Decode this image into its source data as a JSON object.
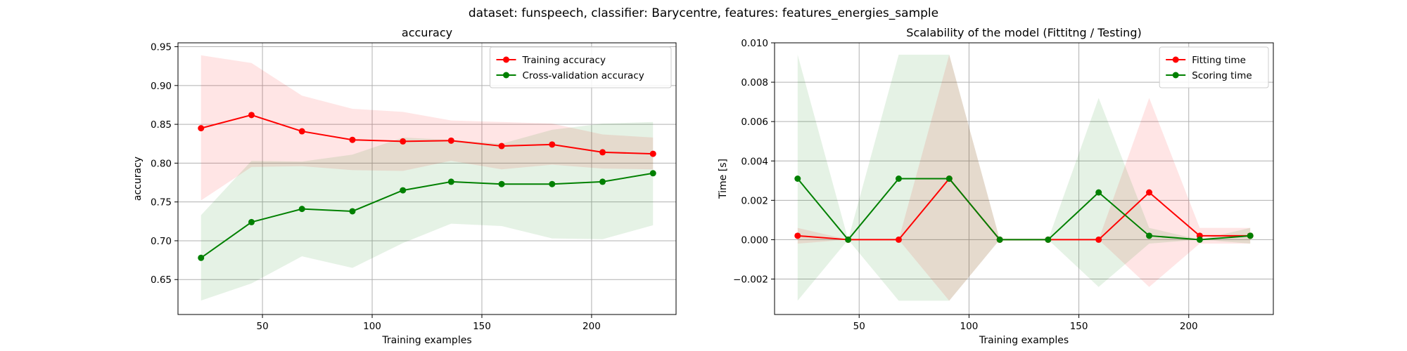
{
  "figure_title": "dataset: funspeech, classifier: Barycentre, features: features_energies_sample",
  "colors": {
    "red": "#ff0000",
    "green": "#008000",
    "grid": "#b0b0b0",
    "axis": "#000000"
  },
  "chart_data": [
    {
      "type": "line",
      "title": "accuracy",
      "xlabel": "Training examples",
      "ylabel": "accuracy",
      "xlim": [
        11.5,
        238.5
      ],
      "ylim": [
        0.605,
        0.955
      ],
      "xticks": [
        50,
        100,
        150,
        200
      ],
      "xtick_labels": [
        "50",
        "100",
        "150",
        "200"
      ],
      "yticks": [
        0.65,
        0.7,
        0.75,
        0.8,
        0.85,
        0.9,
        0.95
      ],
      "ytick_labels": [
        "0.65",
        "0.70",
        "0.75",
        "0.80",
        "0.85",
        "0.90",
        "0.95"
      ],
      "grid": true,
      "legend_position": "upper-right",
      "x": [
        22,
        45,
        68,
        91,
        114,
        136,
        159,
        182,
        205,
        228
      ],
      "series": [
        {
          "name": "Training accuracy",
          "color": "#ff0000",
          "values": [
            0.845,
            0.862,
            0.841,
            0.83,
            0.828,
            0.829,
            0.822,
            0.824,
            0.814,
            0.812
          ],
          "upper": [
            0.939,
            0.929,
            0.887,
            0.87,
            0.866,
            0.855,
            0.853,
            0.851,
            0.837,
            0.833
          ],
          "lower": [
            0.752,
            0.795,
            0.796,
            0.791,
            0.79,
            0.803,
            0.792,
            0.798,
            0.793,
            0.792
          ]
        },
        {
          "name": "Cross-validation accuracy",
          "color": "#008000",
          "values": [
            0.678,
            0.724,
            0.741,
            0.738,
            0.765,
            0.776,
            0.773,
            0.773,
            0.776,
            0.787
          ],
          "upper": [
            0.733,
            0.803,
            0.802,
            0.811,
            0.833,
            0.83,
            0.825,
            0.843,
            0.851,
            0.853
          ],
          "lower": [
            0.623,
            0.645,
            0.68,
            0.665,
            0.697,
            0.722,
            0.719,
            0.703,
            0.702,
            0.72
          ]
        }
      ]
    },
    {
      "type": "line",
      "title": "Scalability of the model (Fittitng / Testing)",
      "xlabel": "Training examples",
      "ylabel": "Time [s]",
      "xlim": [
        11.5,
        238.5
      ],
      "ylim": [
        -0.0038,
        0.01
      ],
      "xticks": [
        50,
        100,
        150,
        200
      ],
      "xtick_labels": [
        "50",
        "100",
        "150",
        "200"
      ],
      "yticks": [
        -0.002,
        0.0,
        0.002,
        0.004,
        0.006,
        0.008,
        0.01
      ],
      "ytick_labels": [
        "−0.002",
        "0.000",
        "0.002",
        "0.004",
        "0.006",
        "0.008",
        "0.010"
      ],
      "grid": true,
      "legend_position": "upper-right",
      "x": [
        22,
        45,
        68,
        91,
        114,
        136,
        159,
        182,
        205,
        228
      ],
      "series": [
        {
          "name": "Fitting time",
          "color": "#ff0000",
          "values": [
            0.0002,
            0.0,
            0.0,
            0.0031,
            0.0,
            0.0,
            0.0,
            0.0024,
            0.0002,
            0.0002
          ],
          "upper": [
            0.0006,
            0.0,
            0.0,
            0.0094,
            0.0,
            0.0,
            0.0,
            0.0072,
            0.0006,
            0.0006
          ],
          "lower": [
            -0.0002,
            0.0,
            0.0,
            -0.0031,
            0.0,
            0.0,
            0.0,
            -0.0024,
            -0.0002,
            -0.0002
          ]
        },
        {
          "name": "Scoring time",
          "color": "#008000",
          "values": [
            0.0031,
            0.0,
            0.0031,
            0.0031,
            0.0,
            0.0,
            0.0024,
            0.0002,
            0.0,
            0.0002
          ],
          "upper": [
            0.0094,
            0.0,
            0.0094,
            0.0094,
            0.0,
            0.0,
            0.0072,
            0.0006,
            0.0,
            0.0006
          ],
          "lower": [
            -0.0031,
            0.0,
            -0.0031,
            -0.0031,
            0.0,
            0.0,
            -0.0024,
            -0.0002,
            0.0,
            -0.0002
          ]
        }
      ]
    }
  ]
}
